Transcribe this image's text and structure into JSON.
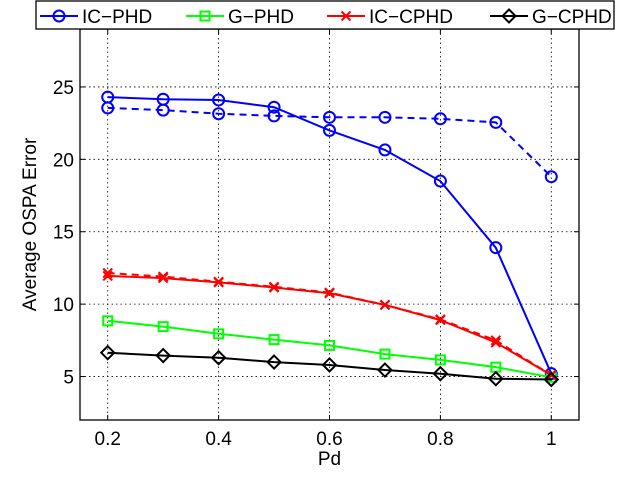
{
  "chart_data": {
    "type": "line",
    "title": "",
    "xlabel": "Pd",
    "ylabel": "Average OSPA Error",
    "xlim": [
      0.15,
      1.05
    ],
    "ylim": [
      2,
      29
    ],
    "xticks": [
      0.2,
      0.4,
      0.6,
      0.8,
      1
    ],
    "xtick_labels": [
      "0.2",
      "0.4",
      "0.6",
      "0.8",
      "1"
    ],
    "yticks": [
      5,
      10,
      15,
      20,
      25
    ],
    "ytick_labels": [
      "5",
      "10",
      "15",
      "20",
      "25"
    ],
    "grid": true,
    "legend_position": "top",
    "x": [
      0.2,
      0.3,
      0.4,
      0.5,
      0.6,
      0.7,
      0.8,
      0.9,
      1.0
    ],
    "series": [
      {
        "name": "IC−PHD",
        "color": "#0000ff",
        "marker": "circle",
        "linestyle": "solid",
        "values": [
          24.3,
          24.15,
          24.1,
          23.6,
          22.0,
          20.65,
          18.5,
          13.9,
          5.2
        ]
      },
      {
        "name": "",
        "color": "#0000ff",
        "marker": "circle",
        "linestyle": "dashed",
        "values": [
          23.55,
          23.4,
          23.15,
          23.0,
          22.9,
          22.9,
          22.8,
          22.55,
          18.8
        ]
      },
      {
        "name": "G−PHD",
        "color": "#00ff00",
        "marker": "square",
        "linestyle": "solid",
        "values": [
          8.85,
          8.45,
          7.95,
          7.55,
          7.15,
          6.55,
          6.15,
          5.65,
          4.95
        ]
      },
      {
        "name": "IC−CPHD",
        "color": "#ff0000",
        "marker": "x",
        "linestyle": "solid",
        "values": [
          11.95,
          11.8,
          11.5,
          11.15,
          10.75,
          9.95,
          8.9,
          7.35,
          5.1
        ]
      },
      {
        "name": "",
        "color": "#ff0000",
        "marker": "x",
        "linestyle": "dashed",
        "values": [
          12.15,
          11.9,
          11.55,
          11.2,
          10.8,
          9.95,
          8.95,
          7.5,
          5.1
        ]
      },
      {
        "name": "G−CPHD",
        "color": "#000000",
        "marker": "diamond",
        "linestyle": "solid",
        "values": [
          6.65,
          6.45,
          6.3,
          6.0,
          5.8,
          5.45,
          5.2,
          4.85,
          4.8
        ]
      }
    ]
  }
}
